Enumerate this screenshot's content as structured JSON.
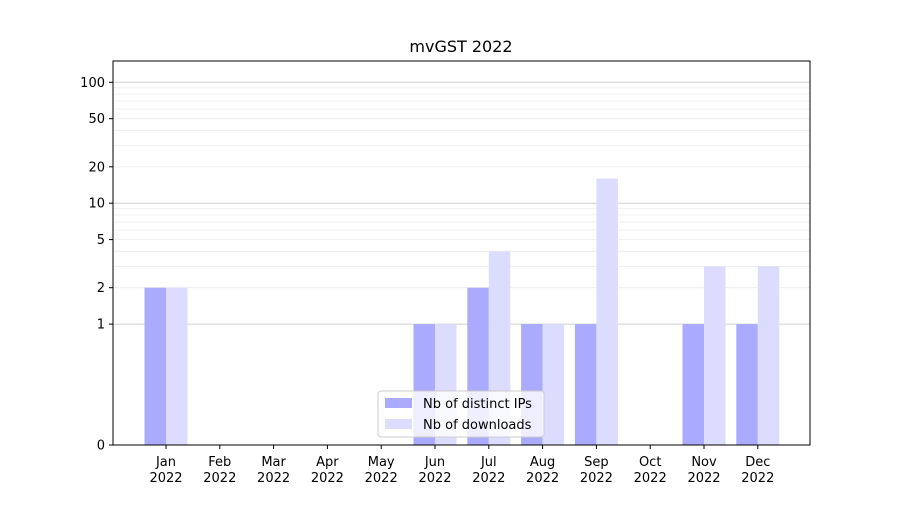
{
  "chart_data": {
    "type": "bar",
    "title": "mvGST 2022",
    "xlabel": "",
    "ylabel": "",
    "y_scale": "symlog",
    "ylim": [
      0,
      150
    ],
    "grid": "y-major-and-minor",
    "legend_position": "lower-center",
    "categories": [
      [
        "Jan",
        "2022"
      ],
      [
        "Feb",
        "2022"
      ],
      [
        "Mar",
        "2022"
      ],
      [
        "Apr",
        "2022"
      ],
      [
        "May",
        "2022"
      ],
      [
        "Jun",
        "2022"
      ],
      [
        "Jul",
        "2022"
      ],
      [
        "Aug",
        "2022"
      ],
      [
        "Sep",
        "2022"
      ],
      [
        "Oct",
        "2022"
      ],
      [
        "Nov",
        "2022"
      ],
      [
        "Dec",
        "2022"
      ]
    ],
    "y_ticks": [
      0,
      1,
      2,
      5,
      10,
      20,
      50,
      100
    ],
    "y_tick_labels": [
      "0",
      "1",
      "2",
      "5",
      "10",
      "20",
      "50",
      "100"
    ],
    "series": [
      {
        "name": "Nb of distinct IPs",
        "color": "#aaaaff",
        "values": [
          2,
          0,
          0,
          0,
          0,
          1,
          2,
          1,
          1,
          0,
          1,
          1
        ]
      },
      {
        "name": "Nb of downloads",
        "color": "#dcdcff",
        "values": [
          2,
          0,
          0,
          0,
          0,
          1,
          4,
          1,
          16,
          0,
          3,
          3
        ]
      }
    ]
  }
}
